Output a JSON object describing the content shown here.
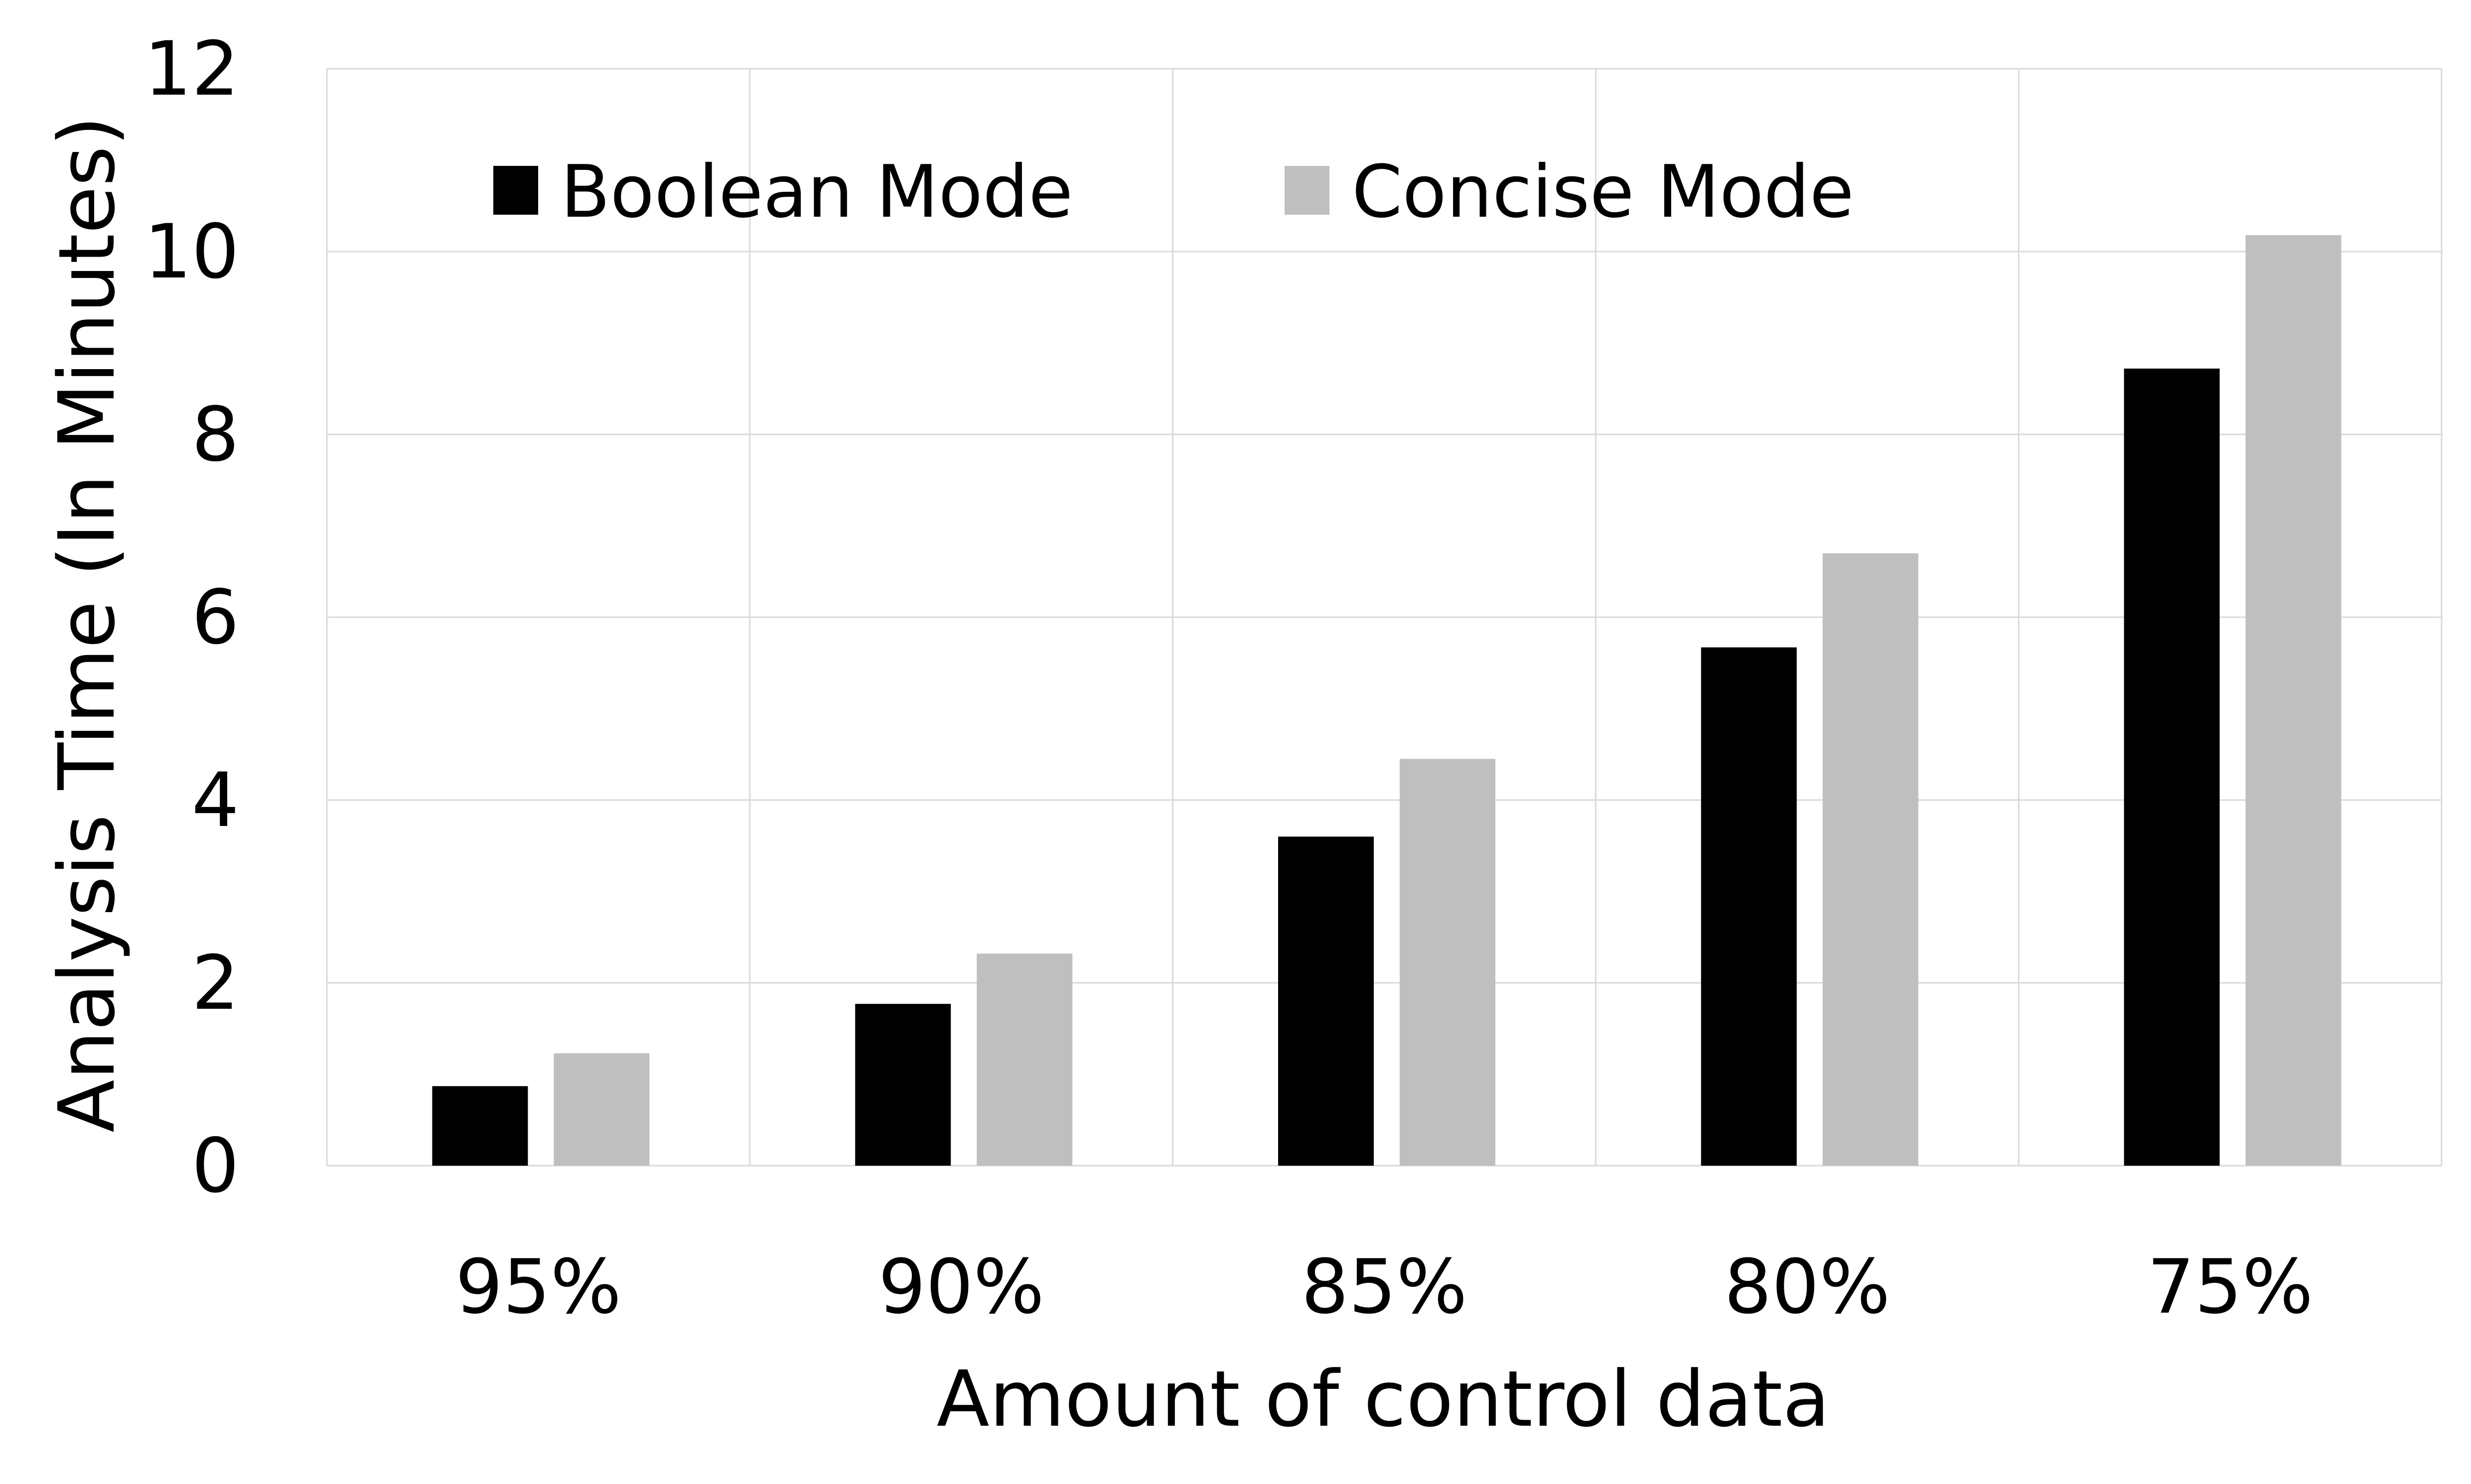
{
  "chart_data": {
    "type": "bar",
    "title": "",
    "xlabel": "Amount of control data",
    "ylabel": "Analysis Time (In Minutes)",
    "categories": [
      "95%",
      "90%",
      "85%",
      "80%",
      "75%"
    ],
    "series": [
      {
        "name": "Boolean Mode",
        "color": "#000000",
        "values": [
          0.87,
          1.77,
          3.6,
          5.67,
          8.72
        ]
      },
      {
        "name": "Concise Mode",
        "color": "#bfbfbf",
        "values": [
          1.23,
          2.32,
          4.45,
          6.7,
          10.18
        ]
      }
    ],
    "ylim": [
      0,
      12
    ],
    "yticks": [
      "0",
      "2",
      "4",
      "6",
      "8",
      "10",
      "12"
    ],
    "grid": true,
    "legend_position": "top-left"
  }
}
